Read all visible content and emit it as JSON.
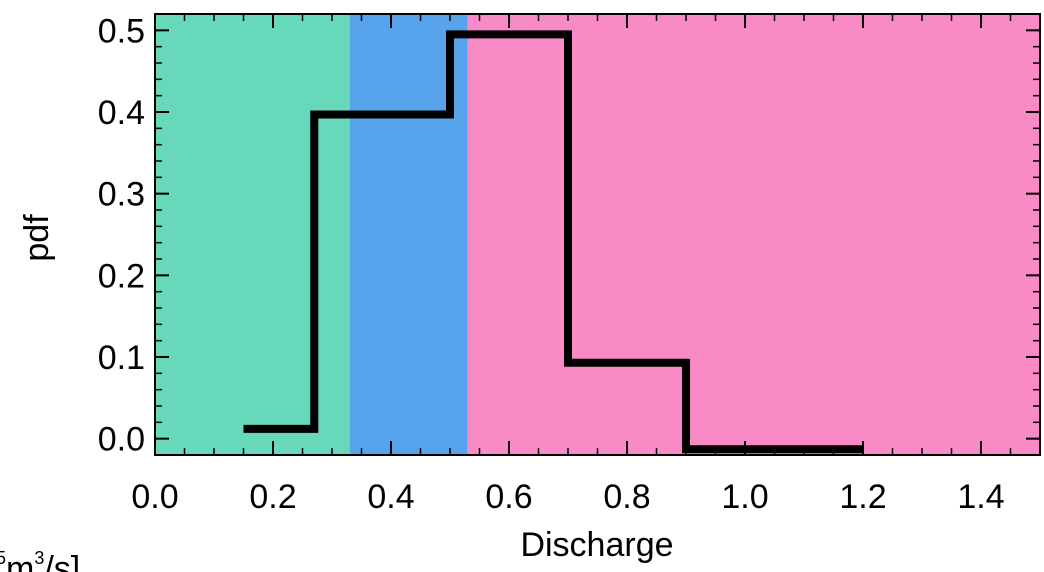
{
  "chart_data": {
    "type": "area",
    "title": "",
    "xlabel": "Discharge",
    "ylabel": "pdf",
    "unit_label": {
      "prefix": "",
      "superscript_1": "5",
      "middle": "m",
      "superscript_2": "3",
      "suffix": "/s]"
    },
    "xlim": [
      0.0,
      1.5
    ],
    "ylim": [
      -0.02,
      0.52
    ],
    "x_ticks": [
      "0.0",
      "0.2",
      "0.4",
      "0.6",
      "0.8",
      "1.0",
      "1.2",
      "1.4"
    ],
    "y_ticks": [
      "0.0",
      "0.1",
      "0.2",
      "0.3",
      "0.4",
      "0.5"
    ],
    "background_bands": [
      {
        "from": 0.0,
        "to": 0.33,
        "color": "#67d8b9"
      },
      {
        "from": 0.33,
        "to": 0.53,
        "color": "#57a3ec"
      },
      {
        "from": 0.53,
        "to": 1.5,
        "color": "#f88bc6"
      }
    ],
    "series": [
      {
        "type": "step",
        "color": "#000000",
        "bins": [
          {
            "x0": 0.15,
            "x1": 0.27,
            "y": 0.012
          },
          {
            "x0": 0.27,
            "x1": 0.5,
            "y": 0.397
          },
          {
            "x0": 0.5,
            "x1": 0.7,
            "y": 0.495
          },
          {
            "x0": 0.7,
            "x1": 0.9,
            "y": 0.093
          },
          {
            "x0": 0.9,
            "x1": 1.2,
            "y": -0.013
          }
        ]
      }
    ]
  }
}
